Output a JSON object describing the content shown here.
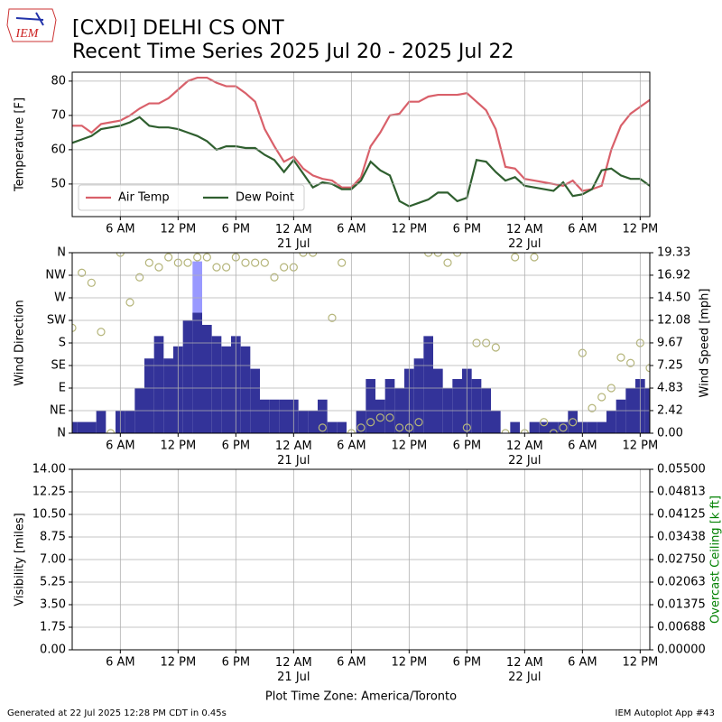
{
  "header": {
    "title": "[CXDI] DELHI CS  ONT",
    "subtitle": "Recent Time Series 2025 Jul 20 - 2025 Jul 22",
    "logo_text": "IEM"
  },
  "footer": {
    "generated": "Generated at 22 Jul 2025 12:28 PM CDT in 0.45s",
    "app": "IEM Autoplot App #43"
  },
  "chart_data": [
    {
      "type": "line",
      "ylabel": "Temperature [F]",
      "x": [
        "2025-07-20T01:00",
        "2025-07-20T02:00",
        "2025-07-20T03:00",
        "2025-07-20T04:00",
        "2025-07-20T05:00",
        "2025-07-20T06:00",
        "2025-07-20T07:00",
        "2025-07-20T08:00",
        "2025-07-20T09:00",
        "2025-07-20T10:00",
        "2025-07-20T11:00",
        "2025-07-20T12:00",
        "2025-07-20T13:00",
        "2025-07-20T14:00",
        "2025-07-20T15:00",
        "2025-07-20T16:00",
        "2025-07-20T17:00",
        "2025-07-20T18:00",
        "2025-07-20T19:00",
        "2025-07-20T20:00",
        "2025-07-20T21:00",
        "2025-07-20T22:00",
        "2025-07-20T23:00",
        "2025-07-21T00:00",
        "2025-07-21T01:00",
        "2025-07-21T02:00",
        "2025-07-21T03:00",
        "2025-07-21T04:00",
        "2025-07-21T05:00",
        "2025-07-21T06:00",
        "2025-07-21T07:00",
        "2025-07-21T08:00",
        "2025-07-21T09:00",
        "2025-07-21T10:00",
        "2025-07-21T11:00",
        "2025-07-21T12:00",
        "2025-07-21T13:00",
        "2025-07-21T14:00",
        "2025-07-21T15:00",
        "2025-07-21T16:00",
        "2025-07-21T17:00",
        "2025-07-21T18:00",
        "2025-07-21T19:00",
        "2025-07-21T20:00",
        "2025-07-21T21:00",
        "2025-07-21T22:00",
        "2025-07-21T23:00",
        "2025-07-22T00:00",
        "2025-07-22T01:00",
        "2025-07-22T02:00",
        "2025-07-22T03:00",
        "2025-07-22T04:00",
        "2025-07-22T05:00",
        "2025-07-22T06:00",
        "2025-07-22T07:00",
        "2025-07-22T08:00",
        "2025-07-22T09:00",
        "2025-07-22T10:00",
        "2025-07-22T11:00",
        "2025-07-22T12:00",
        "2025-07-22T13:00"
      ],
      "series": [
        {
          "name": "Air Temp",
          "color": "#d9606a",
          "values": [
            67,
            67,
            65,
            67.5,
            68,
            68.5,
            70,
            72,
            73.5,
            73.5,
            75,
            77.5,
            80,
            81,
            81,
            79.5,
            78.5,
            78.5,
            76.5,
            74,
            66,
            61,
            56.5,
            58,
            54.5,
            52.5,
            51.5,
            51,
            49,
            49,
            52,
            61,
            65,
            70,
            70.5,
            74,
            74,
            75.5,
            76,
            76,
            76,
            76.5,
            74,
            71.5,
            66,
            55,
            54.5,
            51.5,
            51,
            50.5,
            50,
            49.5,
            51,
            48,
            48.5,
            49.5,
            60,
            67,
            70.5,
            72.5,
            74.5
          ]
        },
        {
          "name": "Dew Point",
          "color": "#2f5f2f",
          "values": [
            62,
            63,
            64,
            66,
            66.5,
            67,
            68,
            69.5,
            67,
            66.5,
            66.5,
            66,
            65,
            64,
            62.5,
            60,
            61,
            61,
            60.5,
            60.5,
            58.5,
            57,
            53.5,
            57,
            53,
            49,
            50.5,
            50,
            48.5,
            48.5,
            51,
            56.5,
            54,
            52.5,
            45,
            43.5,
            44.5,
            45.5,
            47.5,
            47.5,
            45,
            46,
            57,
            56.5,
            53.5,
            51,
            52,
            49.5,
            49,
            48.5,
            48,
            50.5,
            46.5,
            47,
            48.5,
            54,
            54.5,
            52.5,
            51.5,
            51.5,
            49.5
          ]
        }
      ],
      "xlim": [
        "2025-07-20T01:00",
        "2025-07-22T13:00"
      ],
      "xticks": [
        {
          "value": "2025-07-20T06:00",
          "label": "6 AM"
        },
        {
          "value": "2025-07-20T12:00",
          "label": "12 PM"
        },
        {
          "value": "2025-07-20T18:00",
          "label": "6 PM"
        },
        {
          "value": "2025-07-21T00:00",
          "label": "12 AM\n21 Jul"
        },
        {
          "value": "2025-07-21T06:00",
          "label": "6 AM"
        },
        {
          "value": "2025-07-21T12:00",
          "label": "12 PM"
        },
        {
          "value": "2025-07-21T18:00",
          "label": "6 PM"
        },
        {
          "value": "2025-07-22T00:00",
          "label": "12 AM\n22 Jul"
        },
        {
          "value": "2025-07-22T06:00",
          "label": "6 AM"
        },
        {
          "value": "2025-07-22T12:00",
          "label": "12 PM"
        }
      ],
      "ylim": [
        40.5,
        82.6
      ],
      "yticks": [
        50,
        60,
        70,
        80
      ],
      "grid": true,
      "legend": "lower left"
    },
    {
      "type": "combo",
      "ylabel": "Wind Direction",
      "y2label": "Wind Speed [mph]",
      "x": [
        "2025-07-20T01:00",
        "2025-07-20T02:00",
        "2025-07-20T03:00",
        "2025-07-20T04:00",
        "2025-07-20T05:00",
        "2025-07-20T06:00",
        "2025-07-20T07:00",
        "2025-07-20T08:00",
        "2025-07-20T09:00",
        "2025-07-20T10:00",
        "2025-07-20T11:00",
        "2025-07-20T12:00",
        "2025-07-20T13:00",
        "2025-07-20T14:00",
        "2025-07-20T15:00",
        "2025-07-20T16:00",
        "2025-07-20T17:00",
        "2025-07-20T18:00",
        "2025-07-20T19:00",
        "2025-07-20T20:00",
        "2025-07-20T21:00",
        "2025-07-20T22:00",
        "2025-07-20T23:00",
        "2025-07-21T00:00",
        "2025-07-21T01:00",
        "2025-07-21T02:00",
        "2025-07-21T03:00",
        "2025-07-21T04:00",
        "2025-07-21T05:00",
        "2025-07-21T06:00",
        "2025-07-21T07:00",
        "2025-07-21T08:00",
        "2025-07-21T09:00",
        "2025-07-21T10:00",
        "2025-07-21T11:00",
        "2025-07-21T12:00",
        "2025-07-21T13:00",
        "2025-07-21T14:00",
        "2025-07-21T15:00",
        "2025-07-21T16:00",
        "2025-07-21T17:00",
        "2025-07-21T18:00",
        "2025-07-21T19:00",
        "2025-07-21T20:00",
        "2025-07-21T21:00",
        "2025-07-21T22:00",
        "2025-07-21T23:00",
        "2025-07-22T00:00",
        "2025-07-22T01:00",
        "2025-07-22T02:00",
        "2025-07-22T03:00",
        "2025-07-22T04:00",
        "2025-07-22T05:00",
        "2025-07-22T06:00",
        "2025-07-22T07:00",
        "2025-07-22T08:00",
        "2025-07-22T09:00",
        "2025-07-22T10:00",
        "2025-07-22T11:00",
        "2025-07-22T12:00",
        "2025-07-22T13:00"
      ],
      "series": [
        {
          "type": "bar",
          "axis": "y2",
          "color": "#9999ff",
          "values": [
            null,
            null,
            null,
            null,
            null,
            null,
            null,
            null,
            null,
            null,
            null,
            null,
            null,
            18.4,
            null,
            null,
            null,
            null,
            null,
            null,
            null,
            null,
            null,
            null,
            null,
            null,
            null,
            null,
            null,
            null,
            null,
            null,
            null,
            null,
            null,
            null,
            null,
            null,
            null,
            null,
            null,
            null,
            null,
            null,
            null,
            null,
            null,
            null,
            null,
            null,
            null,
            null,
            null,
            null,
            null,
            null,
            null,
            null,
            null,
            null,
            null
          ]
        },
        {
          "type": "bar",
          "axis": "y2",
          "color": "#333399",
          "values": [
            1.2,
            1.2,
            1.2,
            2.4,
            0,
            2.4,
            2.4,
            4.8,
            8,
            10.4,
            8,
            9.3,
            12.1,
            12.9,
            11.6,
            10.4,
            9.3,
            10.4,
            9.3,
            6.9,
            3.6,
            3.6,
            3.6,
            3.6,
            2.4,
            2.4,
            3.6,
            1.2,
            1.2,
            0,
            2.4,
            5.8,
            3.6,
            5.8,
            4.8,
            6.9,
            8,
            10.4,
            6.9,
            4.8,
            5.8,
            6.9,
            5.8,
            4.8,
            2.4,
            0,
            1.2,
            0,
            1.2,
            1.2,
            1.2,
            1.2,
            2.4,
            1.2,
            1.2,
            1.2,
            2.4,
            3.6,
            4.8,
            5.8,
            4.8
          ]
        },
        {
          "type": "scatter",
          "color": "#b5b57a",
          "values": [
            210,
            320,
            300,
            202,
            0,
            360,
            261,
            311,
            340,
            331,
            351,
            340,
            340,
            351,
            351,
            331,
            331,
            351,
            340,
            340,
            340,
            311,
            331,
            331,
            360,
            360,
            11,
            230,
            340,
            0,
            11,
            22,
            31,
            31,
            11,
            11,
            22,
            360,
            360,
            340,
            360,
            11,
            180,
            180,
            171,
            0,
            351,
            0,
            351,
            22,
            0,
            11,
            22,
            160,
            50,
            72,
            90,
            151,
            140,
            180,
            130
          ]
        }
      ],
      "xlim": [
        "2025-07-20T01:00",
        "2025-07-22T13:00"
      ],
      "xticks": [
        {
          "value": "2025-07-20T06:00",
          "label": "6 AM"
        },
        {
          "value": "2025-07-20T12:00",
          "label": "12 PM"
        },
        {
          "value": "2025-07-20T18:00",
          "label": "6 PM"
        },
        {
          "value": "2025-07-21T00:00",
          "label": "12 AM\n21 Jul"
        },
        {
          "value": "2025-07-21T06:00",
          "label": "6 AM"
        },
        {
          "value": "2025-07-21T12:00",
          "label": "12 PM"
        },
        {
          "value": "2025-07-21T18:00",
          "label": "6 PM"
        },
        {
          "value": "2025-07-22T00:00",
          "label": "12 AM\n22 Jul"
        },
        {
          "value": "2025-07-22T06:00",
          "label": "6 AM"
        },
        {
          "value": "2025-07-22T12:00",
          "label": "12 PM"
        }
      ],
      "ylim": [
        0,
        360
      ],
      "yticks": [
        {
          "value": 0,
          "label": "N"
        },
        {
          "value": 45,
          "label": "NE"
        },
        {
          "value": 90,
          "label": "E"
        },
        {
          "value": 135,
          "label": "SE"
        },
        {
          "value": 180,
          "label": "S"
        },
        {
          "value": 225,
          "label": "SW"
        },
        {
          "value": 270,
          "label": "W"
        },
        {
          "value": 315,
          "label": "NW"
        },
        {
          "value": 360,
          "label": "N"
        }
      ],
      "y2lim": [
        0,
        19.33
      ],
      "y2ticks": [
        {
          "value": 0,
          "label": "0.00"
        },
        {
          "value": 2.42,
          "label": "2.42"
        },
        {
          "value": 4.83,
          "label": "4.83"
        },
        {
          "value": 7.25,
          "label": "7.25"
        },
        {
          "value": 9.67,
          "label": "9.67"
        },
        {
          "value": 12.08,
          "label": "12.08"
        },
        {
          "value": 14.5,
          "label": "14.50"
        },
        {
          "value": 16.92,
          "label": "16.92"
        },
        {
          "value": 19.33,
          "label": "19.33"
        }
      ],
      "grid": true
    },
    {
      "type": "line",
      "ylabel": "Visibility [miles]",
      "y2label": "Overcast Ceiling [k ft]",
      "y2label_color": "#008000",
      "series": [],
      "xlabel": "Plot Time Zone: America/Toronto",
      "xlim": [
        "2025-07-20T01:00",
        "2025-07-22T13:00"
      ],
      "xticks": [
        {
          "value": "2025-07-20T06:00",
          "label": "6 AM"
        },
        {
          "value": "2025-07-20T12:00",
          "label": "12 PM"
        },
        {
          "value": "2025-07-20T18:00",
          "label": "6 PM"
        },
        {
          "value": "2025-07-21T00:00",
          "label": "12 AM\n21 Jul"
        },
        {
          "value": "2025-07-21T06:00",
          "label": "6 AM"
        },
        {
          "value": "2025-07-21T12:00",
          "label": "12 PM"
        },
        {
          "value": "2025-07-21T18:00",
          "label": "6 PM"
        },
        {
          "value": "2025-07-22T00:00",
          "label": "12 AM\n22 Jul"
        },
        {
          "value": "2025-07-22T06:00",
          "label": "6 AM"
        },
        {
          "value": "2025-07-22T12:00",
          "label": "12 PM"
        }
      ],
      "ylim": [
        0,
        14
      ],
      "yticks": [
        {
          "value": 0,
          "label": "0.00"
        },
        {
          "value": 1.75,
          "label": "1.75"
        },
        {
          "value": 3.5,
          "label": "3.50"
        },
        {
          "value": 5.25,
          "label": "5.25"
        },
        {
          "value": 7,
          "label": "7.00"
        },
        {
          "value": 8.75,
          "label": "8.75"
        },
        {
          "value": 10.5,
          "label": "10.50"
        },
        {
          "value": 12.25,
          "label": "12.25"
        },
        {
          "value": 14,
          "label": "14.00"
        }
      ],
      "y2lim": [
        0,
        0.055
      ],
      "y2ticks": [
        {
          "value": 0,
          "label": "0.00000"
        },
        {
          "value": 0.00688,
          "label": "0.00688"
        },
        {
          "value": 0.01375,
          "label": "0.01375"
        },
        {
          "value": 0.02063,
          "label": "0.02063"
        },
        {
          "value": 0.0275,
          "label": "0.02750"
        },
        {
          "value": 0.03438,
          "label": "0.03438"
        },
        {
          "value": 0.04125,
          "label": "0.04125"
        },
        {
          "value": 0.04813,
          "label": "0.04813"
        },
        {
          "value": 0.055,
          "label": "0.05500"
        }
      ],
      "grid": true
    }
  ]
}
